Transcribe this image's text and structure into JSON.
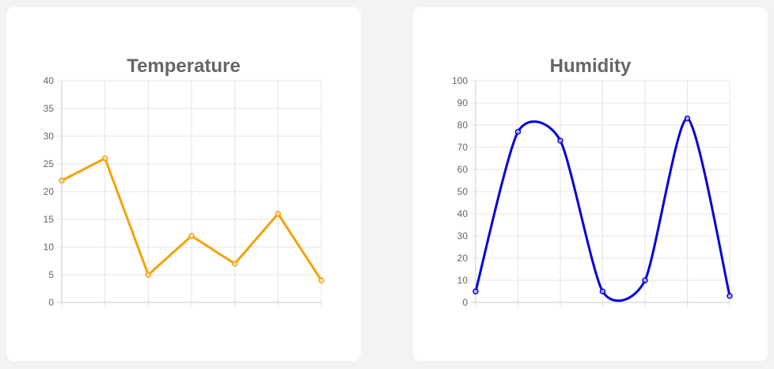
{
  "charts": [
    {
      "id": "temperature",
      "title": "Temperature",
      "chart_data": {
        "type": "line",
        "title": "Temperature",
        "xlabel": "",
        "ylabel": "",
        "categories": [
          "",
          "",
          "",
          "",
          "",
          "",
          ""
        ],
        "ylim": [
          0,
          40
        ],
        "yticks": [
          0,
          5,
          10,
          15,
          20,
          25,
          30,
          35,
          40
        ],
        "grid": true,
        "legend": "none",
        "series": [
          {
            "values": [
              22,
              26,
              5,
              12,
              7,
              16,
              4
            ],
            "color": "#f5a20a",
            "curved": false
          }
        ]
      }
    },
    {
      "id": "humidity",
      "title": "Humidity",
      "chart_data": {
        "type": "line",
        "title": "Humidity",
        "xlabel": "",
        "ylabel": "",
        "categories": [
          "",
          "",
          "",
          "",
          "",
          "",
          ""
        ],
        "ylim": [
          0,
          100
        ],
        "yticks": [
          0,
          10,
          20,
          30,
          40,
          50,
          60,
          70,
          80,
          90,
          100
        ],
        "grid": true,
        "legend": "none",
        "series": [
          {
            "values": [
              5,
              77,
              73,
              5,
              10,
              83,
              3
            ],
            "color": "#0000dd",
            "curved": true
          }
        ]
      }
    }
  ]
}
